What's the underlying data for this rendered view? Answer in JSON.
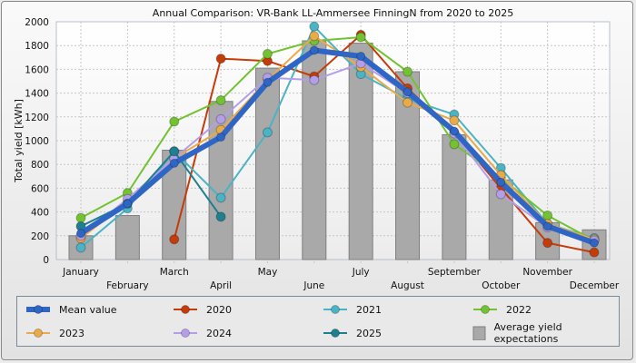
{
  "chart_data": {
    "type": "line",
    "title": "Annual Comparison: VR-Bank LL-Ammersee FinningN from 2020 to 2025",
    "xlabel": "",
    "ylabel": "Total yield [kWh]",
    "ylim": [
      0,
      2000
    ],
    "yticks": [
      0,
      200,
      400,
      600,
      800,
      1000,
      1200,
      1400,
      1600,
      1800,
      2000
    ],
    "grid": true,
    "legend_position": "bottom",
    "categories": [
      "January",
      "February",
      "March",
      "April",
      "May",
      "June",
      "July",
      "August",
      "September",
      "October",
      "November",
      "December"
    ],
    "bars": {
      "name": "Average yield expectations",
      "color": "#a9a9a9",
      "values": [
        200,
        370,
        920,
        1330,
        1610,
        1840,
        1820,
        1580,
        1050,
        670,
        310,
        250
      ]
    },
    "series": [
      {
        "name": "2020",
        "color": "#c43c0a",
        "width": 2,
        "values": [
          null,
          null,
          170,
          1690,
          1670,
          1540,
          1890,
          1440,
          1070,
          600,
          140,
          60
        ]
      },
      {
        "name": "2021",
        "color": "#4ab3c4",
        "width": 2,
        "values": [
          100,
          430,
          910,
          520,
          1070,
          1960,
          1560,
          1350,
          1220,
          770,
          300,
          180
        ]
      },
      {
        "name": "2022",
        "color": "#72c232",
        "width": 2,
        "values": [
          350,
          560,
          1160,
          1340,
          1730,
          1840,
          1870,
          1580,
          970,
          690,
          370,
          160
        ]
      },
      {
        "name": "2023",
        "color": "#eaaa48",
        "width": 2,
        "values": [
          180,
          480,
          850,
          1090,
          1510,
          1880,
          1620,
          1320,
          1170,
          710,
          300,
          170
        ]
      },
      {
        "name": "2024",
        "color": "#b49ee8",
        "width": 2,
        "values": [
          200,
          510,
          850,
          1180,
          1530,
          1510,
          1650,
          1400,
          1060,
          550,
          270,
          160
        ]
      },
      {
        "name": "2025",
        "color": "#1e7f8f",
        "width": 2,
        "values": [
          280,
          470,
          910,
          360,
          null,
          null,
          null,
          null,
          null,
          null,
          null,
          null
        ]
      },
      {
        "name": "Mean value",
        "color": "#2f66c6",
        "width": 6,
        "values": [
          220,
          470,
          810,
          1030,
          1490,
          1760,
          1710,
          1410,
          1080,
          650,
          280,
          140
        ]
      }
    ]
  },
  "legend": {
    "items": [
      {
        "label": "Mean value",
        "color": "#2f66c6",
        "kind": "thick-line"
      },
      {
        "label": "2020",
        "color": "#c43c0a",
        "kind": "line"
      },
      {
        "label": "2021",
        "color": "#4ab3c4",
        "kind": "line"
      },
      {
        "label": "2022",
        "color": "#72c232",
        "kind": "line"
      },
      {
        "label": "2023",
        "color": "#eaaa48",
        "kind": "line"
      },
      {
        "label": "2024",
        "color": "#b49ee8",
        "kind": "line"
      },
      {
        "label": "2025",
        "color": "#1e7f8f",
        "kind": "line"
      },
      {
        "label": "Average yield expectations",
        "color": "#a9a9a9",
        "kind": "bar"
      }
    ]
  }
}
